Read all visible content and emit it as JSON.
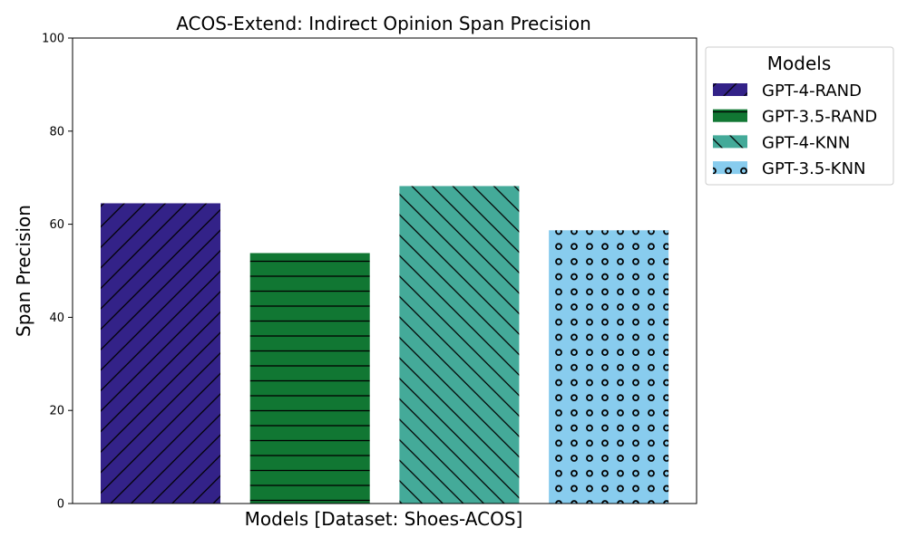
{
  "chart_data": {
    "type": "bar",
    "title": "ACOS-Extend: Indirect Opinion Span Precision",
    "xlabel": "Models [Dataset: Shoes-ACOS]",
    "ylabel": "Span Precision",
    "ylim": [
      0,
      100
    ],
    "yticks": [
      0,
      20,
      40,
      60,
      80,
      100
    ],
    "grid": false,
    "legend": {
      "title": "Models",
      "placement": "outside-top-right"
    },
    "series": [
      {
        "name": "GPT-4-RAND",
        "value": 64.5,
        "color": "#332288",
        "hatch": "diagonal-forward"
      },
      {
        "name": "GPT-3.5-RAND",
        "value": 53.8,
        "color": "#117733",
        "hatch": "horizontal"
      },
      {
        "name": "GPT-4-KNN",
        "value": 68.2,
        "color": "#44AA99",
        "hatch": "diagonal-back"
      },
      {
        "name": "GPT-3.5-KNN",
        "value": 58.7,
        "color": "#88CCEE",
        "hatch": "circles"
      }
    ]
  }
}
